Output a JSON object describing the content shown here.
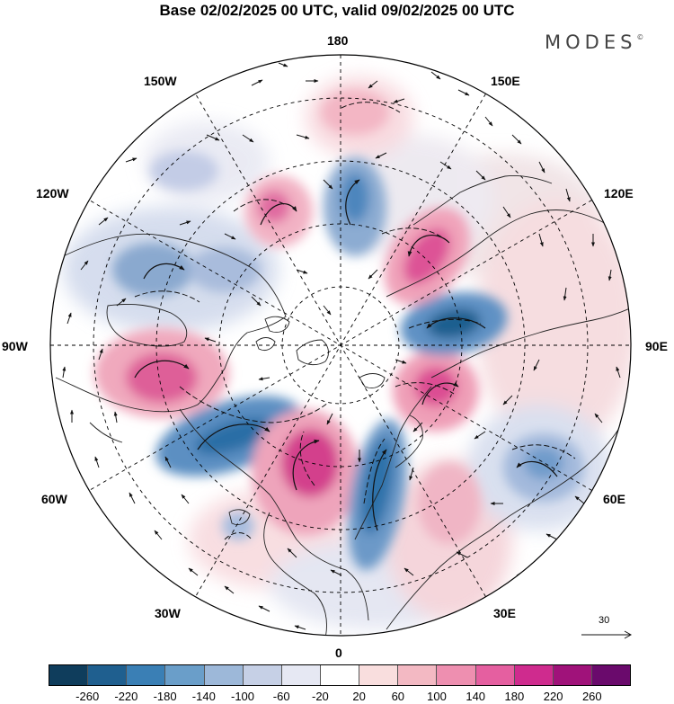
{
  "title": "Base 02/02/2025 00 UTC, valid 09/02/2025 00 UTC",
  "brand": "MODES",
  "brand_mark": "©",
  "longitude_labels": {
    "lon_180": "180",
    "lon_150e": "150E",
    "lon_120e": "120E",
    "lon_90e": "90E",
    "lon_60e": "60E",
    "lon_30e": "30E",
    "lon_0": "0",
    "lon_30w": "30W",
    "lon_60w": "60W",
    "lon_90w": "90W",
    "lon_120w": "120W",
    "lon_150w": "150W"
  },
  "reference_vector": {
    "label": "30"
  },
  "colorbar": {
    "colors": [
      "#0f3d5c",
      "#1f5f8f",
      "#3a7fb5",
      "#6a9ec9",
      "#9db8d9",
      "#c6d0e6",
      "#e6e8f3",
      "#ffffff",
      "#f9dede",
      "#f3b9c3",
      "#ee8fb0",
      "#e55fa0",
      "#cf2b8e",
      "#a0127a",
      "#6a0a6c"
    ],
    "ticks": [
      "-260",
      "-220",
      "-180",
      "-140",
      "-100",
      "-60",
      "-20",
      "20",
      "60",
      "100",
      "140",
      "180",
      "220",
      "260"
    ]
  }
}
